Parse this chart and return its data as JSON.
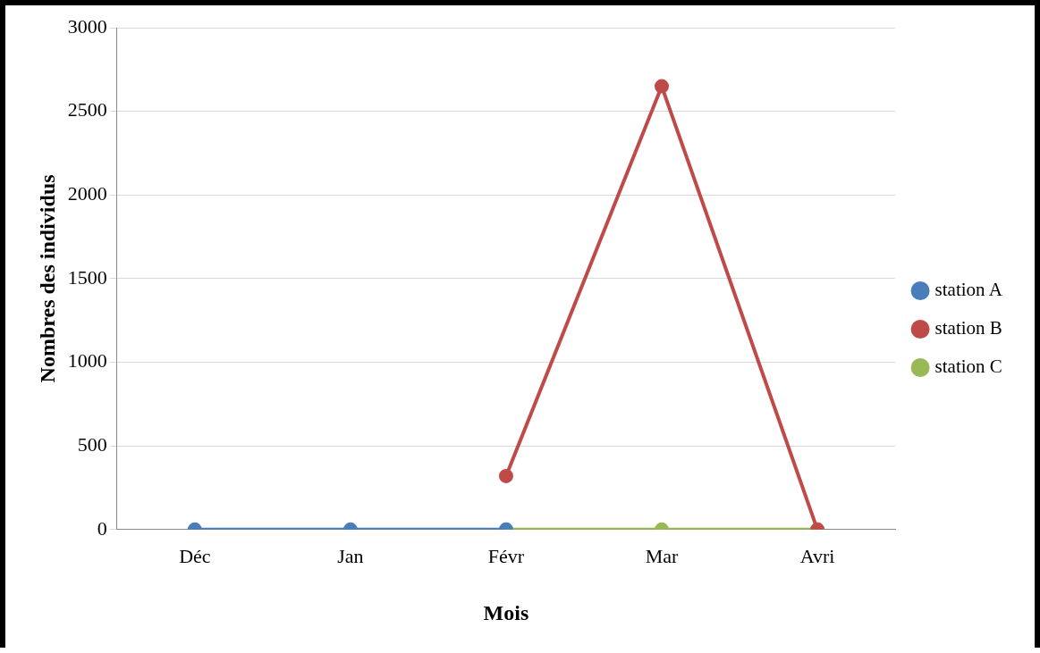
{
  "chart_data": {
    "type": "line",
    "xlabel": "Mois",
    "ylabel": "Nombres des individus",
    "categories": [
      "Déc",
      "Jan",
      "Févr",
      "Mar",
      "Avri"
    ],
    "series": [
      {
        "name": "station A",
        "color": "#4a7ebb",
        "values": [
          0,
          0,
          0,
          null,
          null
        ]
      },
      {
        "name": "station B",
        "color": "#be4b48",
        "values": [
          null,
          null,
          320,
          2650,
          0
        ]
      },
      {
        "name": "station C",
        "color": "#98b954",
        "values": [
          null,
          null,
          0,
          0,
          0
        ]
      }
    ],
    "ylim": [
      0,
      3000
    ],
    "yticks": [
      0,
      500,
      1000,
      1500,
      2000,
      2500,
      3000
    ],
    "grid": "y",
    "legend": "right",
    "marker": "circle",
    "line_style": "solid"
  }
}
